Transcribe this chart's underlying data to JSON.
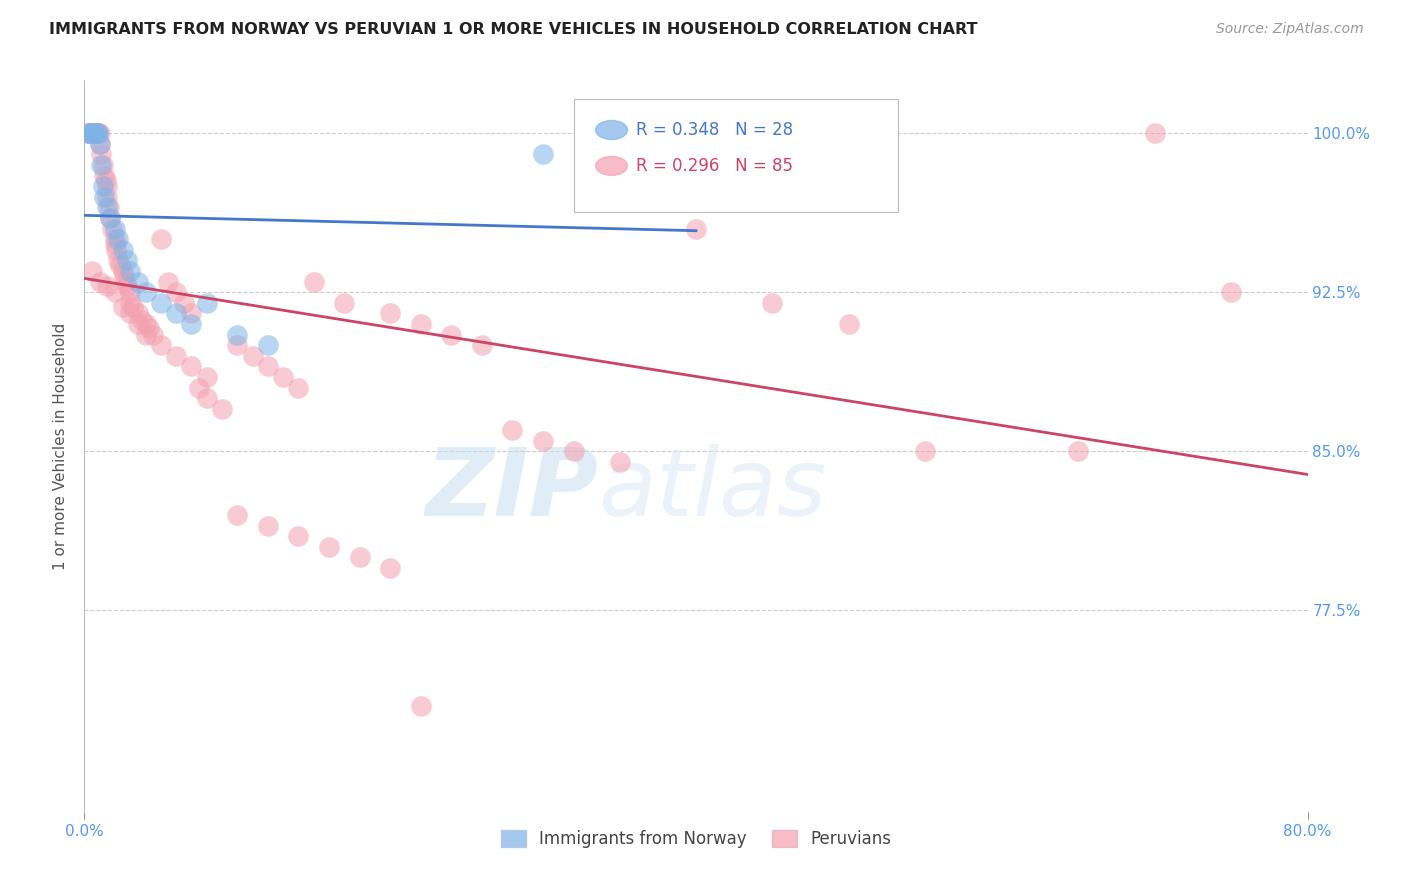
{
  "title": "IMMIGRANTS FROM NORWAY VS PERUVIAN 1 OR MORE VEHICLES IN HOUSEHOLD CORRELATION CHART",
  "source": "Source: ZipAtlas.com",
  "ylabel": "1 or more Vehicles in Household",
  "xlim": [
    0.0,
    80.0
  ],
  "ylim": [
    68.0,
    102.5
  ],
  "yticks": [
    77.5,
    85.0,
    92.5,
    100.0
  ],
  "ytick_labels": [
    "77.5%",
    "85.0%",
    "92.5%",
    "100.0%"
  ],
  "xtick_start": "0.0%",
  "xtick_end": "80.0%",
  "norway_R": 0.348,
  "norway_N": 28,
  "peru_R": 0.296,
  "peru_N": 85,
  "norway_color": "#7fb3e8",
  "peru_color": "#f4a0b0",
  "norway_edge_color": "#5588cc",
  "peru_edge_color": "#dd6688",
  "norway_line_color": "#4477cc",
  "peru_line_color": "#cc4466",
  "watermark_zip": "ZIP",
  "watermark_atlas": "atlas",
  "legend_norway": "Immigrants from Norway",
  "legend_peru": "Peruvians",
  "norway_x": [
    0.3,
    0.4,
    0.5,
    0.6,
    0.7,
    0.8,
    0.9,
    1.0,
    1.1,
    1.2,
    1.3,
    1.5,
    1.7,
    2.0,
    2.2,
    2.5,
    2.8,
    3.0,
    3.5,
    4.0,
    5.0,
    6.0,
    7.0,
    8.0,
    10.0,
    12.0,
    30.0,
    35.0
  ],
  "norway_y": [
    100.0,
    100.0,
    100.0,
    100.0,
    100.0,
    100.0,
    100.0,
    99.5,
    98.5,
    97.5,
    97.0,
    96.5,
    96.0,
    95.5,
    95.0,
    94.5,
    94.0,
    93.5,
    93.0,
    92.5,
    92.0,
    91.5,
    91.0,
    92.0,
    90.5,
    90.0,
    99.0,
    100.0
  ],
  "peru_x": [
    0.2,
    0.3,
    0.4,
    0.5,
    0.6,
    0.7,
    0.8,
    0.9,
    1.0,
    1.0,
    1.1,
    1.2,
    1.3,
    1.4,
    1.5,
    1.5,
    1.6,
    1.7,
    1.8,
    2.0,
    2.0,
    2.1,
    2.2,
    2.3,
    2.5,
    2.6,
    2.7,
    2.8,
    3.0,
    3.0,
    3.2,
    3.5,
    3.8,
    4.0,
    4.2,
    4.5,
    5.0,
    5.5,
    6.0,
    6.5,
    7.0,
    7.5,
    8.0,
    9.0,
    10.0,
    11.0,
    12.0,
    13.0,
    14.0,
    15.0,
    17.0,
    20.0,
    22.0,
    24.0,
    26.0,
    28.0,
    30.0,
    32.0,
    35.0,
    40.0,
    45.0,
    50.0,
    55.0,
    65.0,
    70.0,
    75.0,
    0.5,
    1.0,
    1.5,
    2.0,
    2.5,
    3.0,
    3.5,
    4.0,
    5.0,
    6.0,
    7.0,
    8.0,
    10.0,
    12.0,
    14.0,
    16.0,
    18.0,
    20.0,
    22.0
  ],
  "peru_y": [
    100.0,
    100.0,
    100.0,
    100.0,
    100.0,
    100.0,
    100.0,
    100.0,
    100.0,
    99.5,
    99.0,
    98.5,
    98.0,
    97.8,
    97.5,
    97.0,
    96.5,
    96.0,
    95.5,
    95.0,
    94.8,
    94.5,
    94.0,
    93.8,
    93.5,
    93.2,
    93.0,
    92.8,
    92.5,
    92.0,
    91.8,
    91.5,
    91.2,
    91.0,
    90.8,
    90.5,
    95.0,
    93.0,
    92.5,
    92.0,
    91.5,
    88.0,
    87.5,
    87.0,
    90.0,
    89.5,
    89.0,
    88.5,
    88.0,
    93.0,
    92.0,
    91.5,
    91.0,
    90.5,
    90.0,
    86.0,
    85.5,
    85.0,
    84.5,
    95.5,
    92.0,
    91.0,
    85.0,
    85.0,
    100.0,
    92.5,
    93.5,
    93.0,
    92.8,
    92.5,
    91.8,
    91.5,
    91.0,
    90.5,
    90.0,
    89.5,
    89.0,
    88.5,
    82.0,
    81.5,
    81.0,
    80.5,
    80.0,
    79.5,
    73.0
  ]
}
